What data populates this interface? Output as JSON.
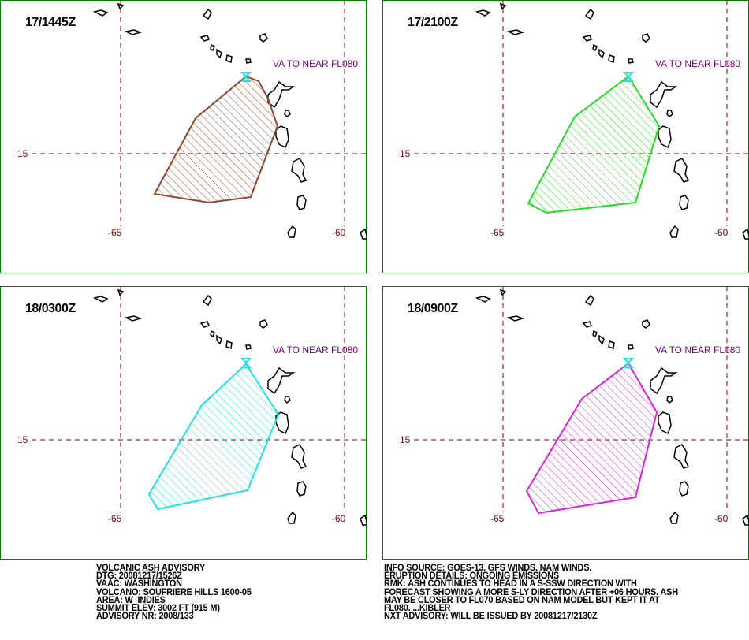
{
  "panels": [
    {
      "time": "17/1445Z",
      "note": "VA TO NEAR FL080",
      "lat_label": "15",
      "lon_labels": [
        "-65",
        "-60"
      ],
      "color": "#8b4a2b"
    },
    {
      "time": "17/2100Z",
      "note": "VA TO NEAR FL080",
      "lat_label": "15",
      "lon_labels": [
        "-65",
        "-60"
      ],
      "color": "#22dd22"
    },
    {
      "time": "18/0300Z",
      "note": "VA TO NEAR FL080",
      "lat_label": "15",
      "lon_labels": [
        "-65",
        "-60"
      ],
      "color": "#22e0e0"
    },
    {
      "time": "18/0900Z",
      "note": "VA TO NEAR FL080",
      "lat_label": "15",
      "lon_labels": [
        "-65",
        "-60"
      ],
      "color": "#dd22dd"
    }
  ],
  "advisory_left": [
    "VOLCANIC ASH ADVISORY",
    "DTG: 20081217/1526Z",
    "VAAC: WASHINGTON",
    "VOLCANO: SOUFRIERE HILLS 1600-05",
    "AREA: W_INDIES",
    "SUMMIT ELEV: 3002 FT (915 M)",
    "ADVISORY NR: 2008/133"
  ],
  "advisory_right": [
    "INFO SOURCE: GOES-13. GFS WINDS. NAM WINDS.",
    "ERUPTION DETAILS: ONGOING EMISSIONS",
    "RMK: ASH CONTINUES TO HEAD IN A S-SSW DIRECTION WITH",
    "FORECAST SHOWING A MORE S-LY DIRECTION AFTER +06 HOURS. ASH",
    "MAY BE CLOSER TO FL070 BASED ON NAM MODEL BUT KEPT IT AT",
    "FL080. ...KIBLER",
    "NXT ADVISORY: WILL BE ISSUED BY 20081217/2130Z"
  ]
}
